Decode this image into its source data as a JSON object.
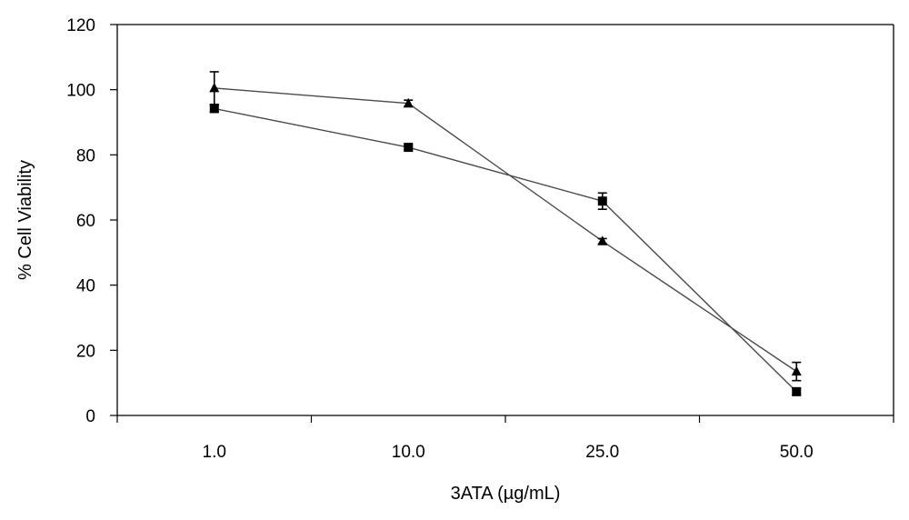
{
  "chart_data": {
    "type": "line",
    "title": "",
    "xlabel": "3ATA (µg/mL)",
    "ylabel": "% Cell  Viability",
    "categories": [
      "1.0",
      "10.0",
      "25.0",
      "50.0"
    ],
    "ylim": [
      0,
      120
    ],
    "yticks": [
      0,
      20,
      40,
      60,
      80,
      100,
      120
    ],
    "grid": false,
    "legend": "none",
    "series": [
      {
        "name": "triangle series",
        "marker": "triangle",
        "values": [
          100.5,
          95.8,
          53.5,
          13.5
        ],
        "errors": [
          5.0,
          1.0,
          0.8,
          2.8
        ]
      },
      {
        "name": "square series",
        "marker": "square",
        "values": [
          94.2,
          82.3,
          65.8,
          7.3
        ],
        "errors": [
          1.0,
          0.8,
          2.5,
          1.0
        ]
      }
    ]
  }
}
